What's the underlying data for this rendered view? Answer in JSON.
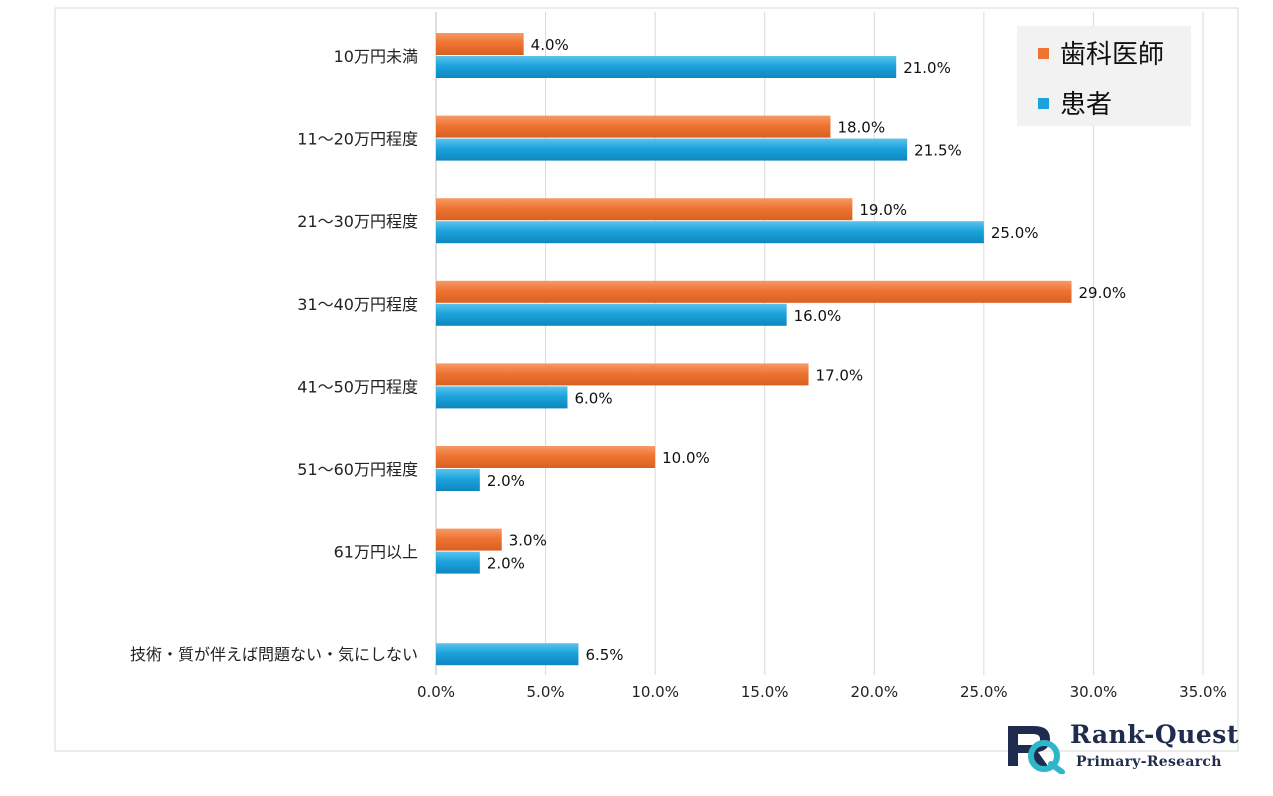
{
  "chart_data": {
    "type": "bar",
    "orientation": "horizontal",
    "title": "",
    "xlabel": "",
    "ylabel": "",
    "xlim": [
      0,
      35
    ],
    "x_ticks": [
      "0.0%",
      "5.0%",
      "10.0%",
      "15.0%",
      "20.0%",
      "25.0%",
      "30.0%",
      "35.0%"
    ],
    "grid": true,
    "legend_position": "top-right",
    "categories": [
      "10万円未満",
      "11〜20万円程度",
      "21〜30万円程度",
      "31〜40万円程度",
      "41〜50万円程度",
      "51〜60万円程度",
      "61万円以上",
      "技術・質が伴えば問題ない・気にしない"
    ],
    "series": [
      {
        "name": "歯科医師",
        "color": "#ee7433",
        "values": [
          4.0,
          18.0,
          19.0,
          29.0,
          17.0,
          10.0,
          3.0,
          null
        ],
        "labels": [
          "4.0%",
          "18.0%",
          "19.0%",
          "29.0%",
          "17.0%",
          "10.0%",
          "3.0%",
          ""
        ]
      },
      {
        "name": "患者",
        "color": "#1ca3dc",
        "values": [
          21.0,
          21.5,
          25.0,
          16.0,
          6.0,
          2.0,
          2.0,
          6.5
        ],
        "labels": [
          "21.0%",
          "21.5%",
          "25.0%",
          "16.0%",
          "6.0%",
          "2.0%",
          "2.0%",
          "6.5%"
        ]
      }
    ]
  },
  "branding": {
    "name": "Rank-Quest",
    "tagline": "Primary-Research"
  }
}
